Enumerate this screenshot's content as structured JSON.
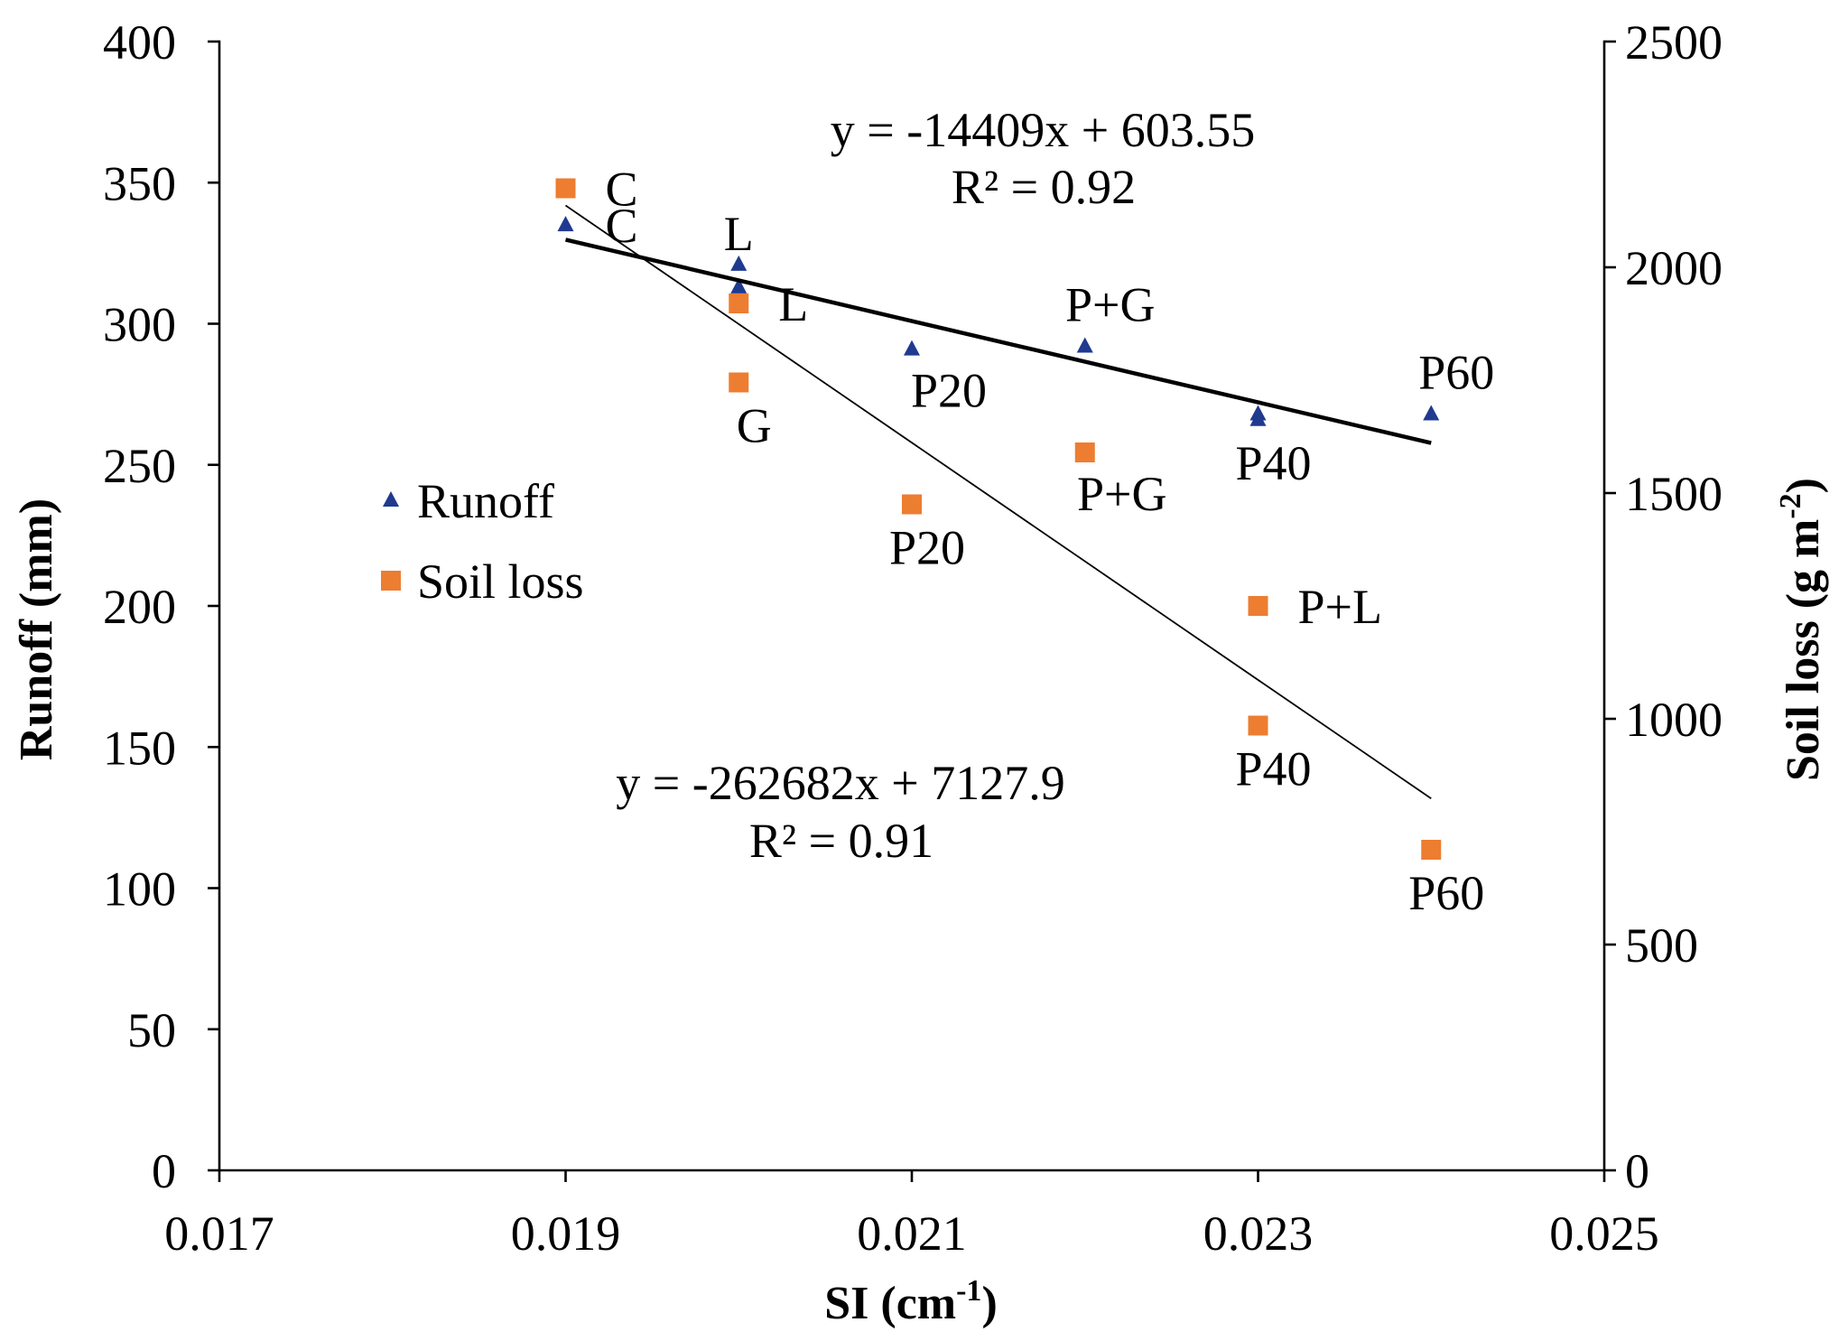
{
  "chart_data": {
    "type": "scatter",
    "xlabel": {
      "base": "SI (cm",
      "sup": "-1",
      "end": ")"
    },
    "ylabel": "Runoff (mm)",
    "y2label": {
      "base": "Soil loss (g m",
      "sup": "-2",
      "end": ")"
    },
    "xlim": [
      0.017,
      0.025
    ],
    "ylim": [
      0,
      400
    ],
    "y2lim": [
      0,
      2500
    ],
    "x_ticks": [
      "0.017",
      "0.019",
      "0.021",
      "0.023",
      "0.025"
    ],
    "y_ticks": [
      "0",
      "50",
      "100",
      "150",
      "200",
      "250",
      "300",
      "350",
      "400"
    ],
    "y2_ticks": [
      "0",
      "500",
      "1000",
      "1500",
      "2000",
      "2500"
    ],
    "grid": false,
    "legend": "left",
    "series": [
      {
        "name": "Runoff",
        "axis": "left",
        "marker": "triangle",
        "color": "#1f3a8f",
        "points": [
          {
            "x": 0.019,
            "y": 335,
            "label": "C",
            "label_pos": "right"
          },
          {
            "x": 0.02,
            "y": 321,
            "label": "L",
            "label_pos": "above"
          },
          {
            "x": 0.02,
            "y": 313
          },
          {
            "x": 0.021,
            "y": 291,
            "label": "P20",
            "label_pos": "below-right"
          },
          {
            "x": 0.022,
            "y": 292,
            "label": "P+G",
            "label_pos": "above-right"
          },
          {
            "x": 0.023,
            "y": 268
          },
          {
            "x": 0.023,
            "y": 266,
            "label": "P40",
            "label_pos": "below"
          },
          {
            "x": 0.024,
            "y": 268,
            "label": "P60",
            "label_pos": "above-right"
          }
        ],
        "trendline": {
          "slope": -14409,
          "intercept": 603.55,
          "x_range": [
            0.019,
            0.024
          ],
          "equation": "y = -14409x + 603.55",
          "r2": "R² = 0.92"
        }
      },
      {
        "name": "Soil loss",
        "axis": "right",
        "marker": "square",
        "color": "#ed7d31",
        "points": [
          {
            "x": 0.019,
            "y": 2175,
            "label": "C",
            "label_pos": "right"
          },
          {
            "x": 0.02,
            "y": 1920,
            "label": "L",
            "label_pos": "right"
          },
          {
            "x": 0.02,
            "y": 1745,
            "label": "G",
            "label_pos": "below"
          },
          {
            "x": 0.021,
            "y": 1475,
            "label": "P20",
            "label_pos": "below"
          },
          {
            "x": 0.022,
            "y": 1590,
            "label": "P+G",
            "label_pos": "below-right"
          },
          {
            "x": 0.023,
            "y": 985,
            "label": "P40",
            "label_pos": "below"
          },
          {
            "x": 0.023,
            "y": 1250,
            "label": "P+L",
            "label_pos": "right"
          },
          {
            "x": 0.024,
            "y": 710,
            "label": "P60",
            "label_pos": "below"
          }
        ],
        "trendline": {
          "slope": -262682,
          "intercept": 7127.9,
          "x_range": [
            0.019,
            0.024
          ],
          "equation": "y = -262682x + 7127.9",
          "r2": "R² = 0.91"
        }
      }
    ]
  }
}
